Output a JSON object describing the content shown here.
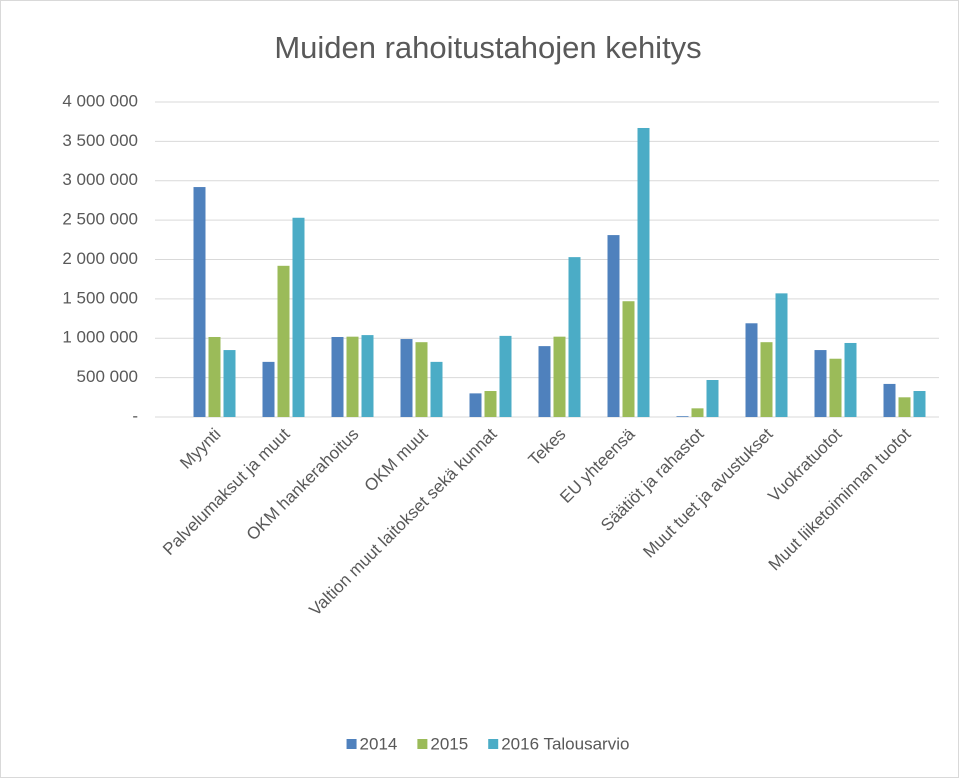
{
  "chart_data": {
    "type": "bar",
    "title": "Muiden rahoitustahojen kehitys",
    "categories": [
      "Myynti",
      "Palvelumaksut ja muut",
      "OKM hankerahoitus",
      "OKM muut",
      "Valtion muut laitokset sekä kunnat",
      "Tekes",
      "EU yhteensä",
      "Säätiöt ja rahastot",
      "Muut tuet ja avustukset",
      "Vuokratuotot",
      "Muut liiketoiminnan tuotot"
    ],
    "series": [
      {
        "name": "2014",
        "color": "#4f81bd",
        "values": [
          2920000,
          700000,
          1016000,
          990000,
          300000,
          900000,
          2310000,
          10000,
          1190000,
          850000,
          420000
        ]
      },
      {
        "name": "2015",
        "color": "#9bbb59",
        "values": [
          1016000,
          1920000,
          1020000,
          950000,
          330000,
          1020000,
          1470000,
          110000,
          950000,
          740000,
          250000
        ]
      },
      {
        "name": "2016 Talousarvio",
        "color": "#4bacc6",
        "values": [
          850000,
          2530000,
          1040000,
          700000,
          1030000,
          2030000,
          3670000,
          470000,
          1570000,
          940000,
          330000
        ]
      }
    ],
    "ylim": [
      0,
      4000000
    ],
    "yticks": [
      {
        "value": 0,
        "label": "-"
      },
      {
        "value": 500000,
        "label": "500 000"
      },
      {
        "value": 1000000,
        "label": "1 000 000"
      },
      {
        "value": 1500000,
        "label": "1 500 000"
      },
      {
        "value": 2000000,
        "label": "2 000 000"
      },
      {
        "value": 2500000,
        "label": "2 500 000"
      },
      {
        "value": 3000000,
        "label": "3 000 000"
      },
      {
        "value": 3500000,
        "label": "3 500 000"
      },
      {
        "value": 4000000,
        "label": "4 000 000"
      }
    ],
    "grid": true,
    "legend": "bottom"
  }
}
